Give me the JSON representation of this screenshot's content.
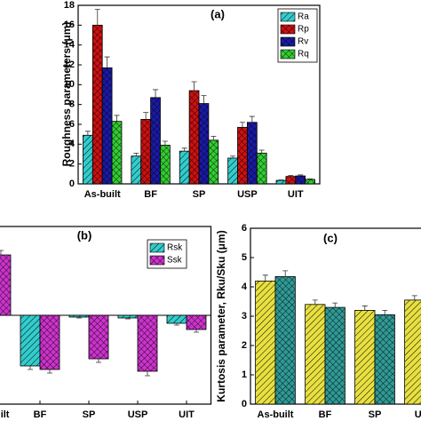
{
  "chart_data": [
    {
      "type": "bar",
      "title": "(a)",
      "y_label": "Roughness parameters (μm)",
      "categories": [
        "As-built",
        "BF",
        "SP",
        "USP",
        "UIT"
      ],
      "series": [
        {
          "name": "Ra",
          "color": "#33cccc",
          "values": [
            4.9,
            2.8,
            3.3,
            2.6,
            0.35
          ],
          "errors": [
            0.4,
            0.3,
            0.3,
            0.2,
            0.05
          ]
        },
        {
          "name": "Rp",
          "color": "#cc1111",
          "values": [
            16.0,
            6.5,
            9.4,
            5.7,
            0.75
          ],
          "errors": [
            1.6,
            0.7,
            0.9,
            0.5,
            0.1
          ]
        },
        {
          "name": "Rv",
          "color": "#1a1aa6",
          "values": [
            11.7,
            8.7,
            8.1,
            6.2,
            0.8
          ],
          "errors": [
            1.1,
            0.8,
            0.8,
            0.6,
            0.1
          ]
        },
        {
          "name": "Rq",
          "color": "#33cc33",
          "values": [
            6.3,
            3.9,
            4.4,
            3.1,
            0.45
          ],
          "errors": [
            0.6,
            0.4,
            0.4,
            0.3,
            0.05
          ]
        }
      ],
      "ylim": [
        0,
        18
      ],
      "yticks": [
        0,
        2,
        4,
        6,
        8,
        10,
        12,
        14,
        16,
        18
      ],
      "legend": "upper right"
    },
    {
      "type": "bar",
      "title": "(b)",
      "categories": [
        "As-built",
        "BF",
        "SP",
        "USP",
        "UIT"
      ],
      "series": [
        {
          "name": "Rsk",
          "color": "#33cccc",
          "values": [
            null,
            -0.57,
            -0.02,
            -0.03,
            -0.09
          ],
          "errors": [
            null,
            0.04,
            0.01,
            0.01,
            0.02
          ]
        },
        {
          "name": "Ssk",
          "color": "#cc33cc",
          "values": [
            0.68,
            -0.61,
            -0.49,
            -0.63,
            -0.16
          ],
          "errors": [
            0.05,
            0.04,
            0.04,
            0.05,
            0.03
          ]
        }
      ],
      "ylim": [
        -1,
        1
      ],
      "legend": "upper right"
    },
    {
      "type": "bar",
      "title": "(c)",
      "y_label": "Kurtosis parameter, Rku/Sku (μm)",
      "categories": [
        "As-built",
        "BF",
        "SP",
        "USP",
        "UIT"
      ],
      "series": [
        {
          "color": "#e8e040",
          "values": [
            4.2,
            3.4,
            3.2,
            3.55,
            null
          ],
          "errors": [
            0.2,
            0.15,
            0.15,
            0.15,
            null
          ]
        },
        {
          "color": "#2f9a96",
          "values": [
            4.35,
            3.3,
            3.05,
            null,
            null
          ],
          "errors": [
            0.2,
            0.15,
            0.15,
            null,
            null
          ]
        }
      ],
      "ylim": [
        0,
        6
      ],
      "yticks": [
        0,
        1,
        2,
        3,
        4,
        5,
        6
      ]
    }
  ]
}
